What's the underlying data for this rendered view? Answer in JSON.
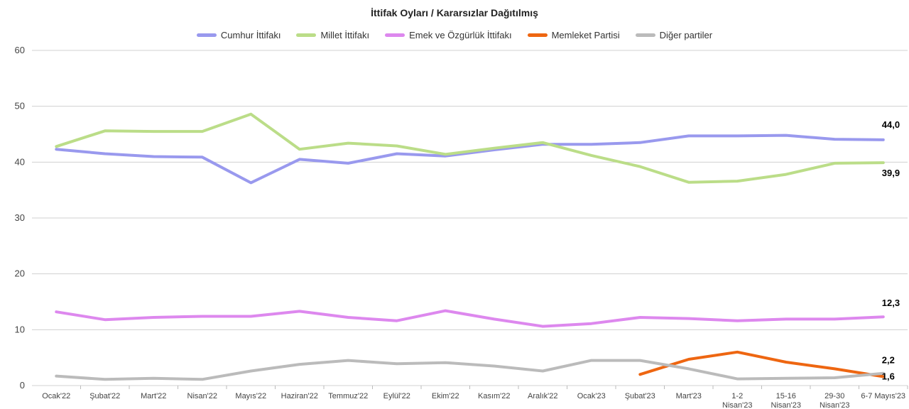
{
  "chart_data": {
    "type": "line",
    "title": "İttifak Oyları / Kararsızlar Dağıtılmış",
    "ylim": [
      0,
      60
    ],
    "yticks": [
      0,
      10,
      20,
      30,
      40,
      50,
      60
    ],
    "grid": true,
    "legend_position": "top-center",
    "categories": [
      "Ocak'22",
      "Şubat'22",
      "Mart'22",
      "Nisan'22",
      "Mayıs'22",
      "Haziran'22",
      "Temmuz'22",
      "Eylül'22",
      "Ekim'22",
      "Kasım'22",
      "Aralık'22",
      "Ocak'23",
      "Şubat'23",
      "Mart'23",
      "1-2 Nisan'23",
      "15-16 Nisan'23",
      "29-30 Nisan'23",
      "6-7 Mayıs'23"
    ],
    "series": [
      {
        "name": "Cumhur İttifakı",
        "color": "#9999ee",
        "values": [
          42.3,
          41.5,
          41.0,
          40.9,
          36.3,
          40.5,
          39.8,
          41.5,
          41.1,
          42.2,
          43.2,
          43.2,
          43.5,
          44.7,
          44.7,
          44.8,
          44.1,
          44.0
        ],
        "end_label": "44,0"
      },
      {
        "name": "Millet İttifakı",
        "color": "#bbdd88",
        "values": [
          42.8,
          45.6,
          45.5,
          45.5,
          48.6,
          42.3,
          43.4,
          42.9,
          41.4,
          42.5,
          43.5,
          41.2,
          39.2,
          36.4,
          36.6,
          37.8,
          39.8,
          39.9
        ],
        "end_label": "39,9"
      },
      {
        "name": "Emek ve Özgürlük İttifakı",
        "color": "#dd88ee",
        "values": [
          13.2,
          11.8,
          12.2,
          12.4,
          12.4,
          13.3,
          12.2,
          11.6,
          13.4,
          11.9,
          10.6,
          11.1,
          12.2,
          12.0,
          11.6,
          11.9,
          11.9,
          12.3
        ],
        "end_label": "12,3"
      },
      {
        "name": "Memleket Partisi",
        "color": "#ee6611",
        "values": [
          null,
          null,
          null,
          null,
          null,
          null,
          null,
          null,
          null,
          null,
          null,
          null,
          2.0,
          4.7,
          6.0,
          4.2,
          3.0,
          1.6
        ],
        "end_label": "1,6"
      },
      {
        "name": "Diğer partiler",
        "color": "#bbbbbb",
        "values": [
          1.7,
          1.1,
          1.3,
          1.1,
          2.6,
          3.8,
          4.5,
          3.9,
          4.1,
          3.5,
          2.6,
          4.5,
          4.5,
          3.0,
          1.2,
          1.3,
          1.4,
          2.2
        ],
        "end_label": "2,2"
      }
    ]
  }
}
